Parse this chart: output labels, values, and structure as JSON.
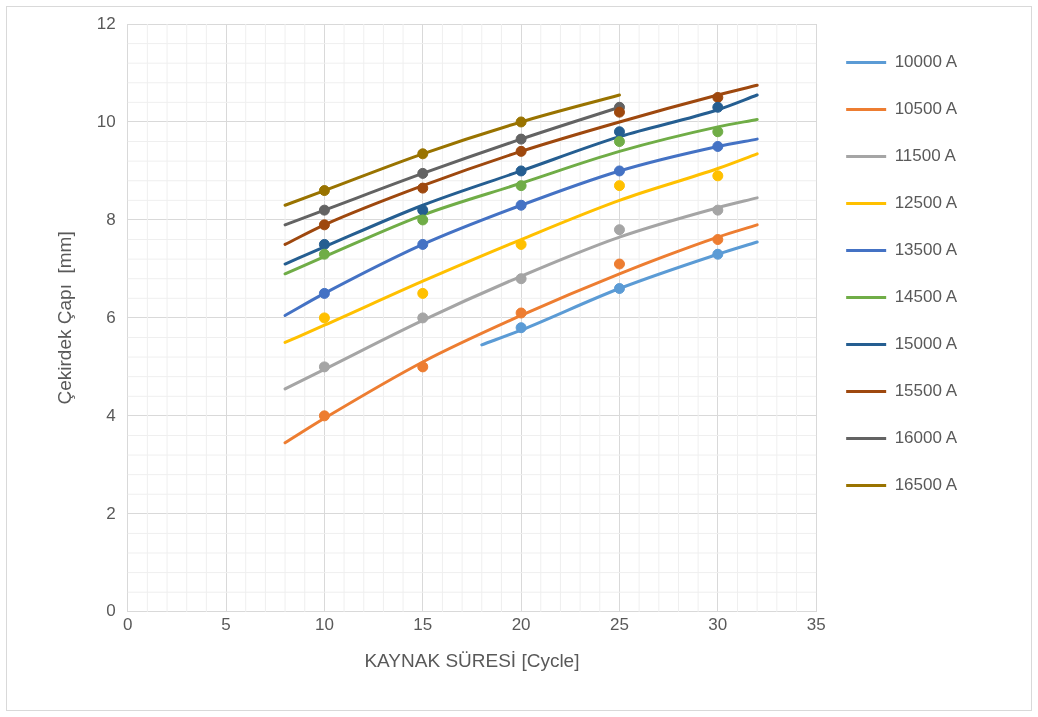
{
  "chart_data": {
    "type": "line",
    "xlabel": "KAYNAK SÜRESİ [Cycle]",
    "ylabel": "Çekirdek Çapı  [mm]",
    "xlim": [
      0,
      35
    ],
    "xticks": [
      0,
      5,
      10,
      15,
      20,
      25,
      30,
      35
    ],
    "ylim": [
      0,
      12
    ],
    "yticks": [
      0,
      2,
      4,
      6,
      8,
      10,
      12
    ],
    "grid": true,
    "legend": "right",
    "marker": "none",
    "line_style": "solid",
    "series": [
      {
        "name": "10000 A",
        "color": "#5b9bd5",
        "x": [
          18,
          20,
          25,
          30,
          32
        ],
        "values": [
          5.45,
          5.75,
          6.6,
          7.3,
          7.55
        ]
      },
      {
        "name": "10500 A",
        "color": "#ed7d31",
        "x": [
          8,
          10,
          15,
          20,
          25,
          30,
          32
        ],
        "values": [
          3.45,
          3.95,
          5.1,
          6.05,
          6.9,
          7.65,
          7.9
        ]
      },
      {
        "name": "11500 A",
        "color": "#a5a5a5",
        "x": [
          8,
          10,
          15,
          20,
          25,
          30,
          32
        ],
        "values": [
          4.55,
          4.95,
          5.95,
          6.85,
          7.65,
          8.25,
          8.45
        ]
      },
      {
        "name": "12500 A",
        "color": "#ffc000",
        "x": [
          8,
          10,
          15,
          20,
          25,
          30,
          32
        ],
        "values": [
          5.5,
          5.85,
          6.75,
          7.6,
          8.4,
          9.05,
          9.35
        ]
      },
      {
        "name": "13500 A",
        "color": "#4472c4",
        "x": [
          8,
          10,
          15,
          20,
          25,
          30,
          32
        ],
        "values": [
          6.05,
          6.5,
          7.5,
          8.3,
          9.0,
          9.5,
          9.65
        ]
      },
      {
        "name": "14500 A",
        "color": "#70ad47",
        "x": [
          8,
          10,
          15,
          20,
          25,
          30,
          32
        ],
        "values": [
          6.9,
          7.25,
          8.1,
          8.75,
          9.4,
          9.9,
          10.05
        ]
      },
      {
        "name": "15000 A",
        "color": "#255e91",
        "x": [
          8,
          10,
          15,
          20,
          25,
          30,
          32
        ],
        "values": [
          7.1,
          7.45,
          8.3,
          9.0,
          9.7,
          10.25,
          10.55
        ]
      },
      {
        "name": "15500 A",
        "color": "#9e480e",
        "x": [
          8,
          10,
          15,
          20,
          25,
          30,
          32
        ],
        "values": [
          7.5,
          7.9,
          8.7,
          9.4,
          10.0,
          10.55,
          10.75
        ]
      },
      {
        "name": "16000 A",
        "color": "#636363",
        "x": [
          8,
          10,
          15,
          20,
          25
        ],
        "values": [
          7.9,
          8.2,
          8.95,
          9.65,
          10.3
        ]
      },
      {
        "name": "16500 A",
        "color": "#997300",
        "x": [
          8,
          10,
          15,
          20,
          25
        ],
        "values": [
          8.3,
          8.6,
          9.35,
          10.0,
          10.55
        ]
      },
      {
        "type": "scatter",
        "marker": "circle",
        "color": "#5b9bd5",
        "x": [
          20,
          25,
          30
        ],
        "values": [
          5.8,
          6.6,
          7.3
        ]
      },
      {
        "type": "scatter",
        "marker": "circle",
        "color": "#ed7d31",
        "x": [
          10,
          15,
          20,
          25,
          30
        ],
        "values": [
          4.0,
          5.0,
          6.1,
          7.1,
          7.6
        ]
      },
      {
        "type": "scatter",
        "marker": "circle",
        "color": "#a5a5a5",
        "x": [
          10,
          15,
          20,
          25,
          30
        ],
        "values": [
          5.0,
          6.0,
          6.8,
          7.8,
          8.2
        ]
      },
      {
        "type": "scatter",
        "marker": "circle",
        "color": "#ffc000",
        "x": [
          10,
          15,
          20,
          25,
          30
        ],
        "values": [
          6.0,
          6.5,
          7.5,
          8.7,
          8.9
        ]
      },
      {
        "type": "scatter",
        "marker": "circle",
        "color": "#4472c4",
        "x": [
          10,
          15,
          20,
          25,
          30
        ],
        "values": [
          6.5,
          7.5,
          8.3,
          9.0,
          9.5
        ]
      },
      {
        "type": "scatter",
        "marker": "circle",
        "color": "#70ad47",
        "x": [
          10,
          15,
          20,
          25,
          30
        ],
        "values": [
          7.3,
          8.0,
          8.7,
          9.6,
          9.8
        ]
      },
      {
        "type": "scatter",
        "marker": "circle",
        "color": "#255e91",
        "x": [
          10,
          15,
          20,
          25,
          30
        ],
        "values": [
          7.5,
          8.2,
          9.0,
          9.8,
          10.3
        ]
      },
      {
        "type": "scatter",
        "marker": "circle",
        "color": "#9e480e",
        "x": [
          10,
          15,
          20,
          25,
          30
        ],
        "values": [
          7.9,
          8.65,
          9.4,
          10.2,
          10.5
        ]
      },
      {
        "type": "scatter",
        "marker": "circle",
        "color": "#636363",
        "x": [
          10,
          15,
          20,
          25
        ],
        "values": [
          8.2,
          8.95,
          9.65,
          10.3
        ]
      },
      {
        "type": "scatter",
        "marker": "circle",
        "color": "#997300",
        "x": [
          10,
          15,
          20
        ],
        "values": [
          8.6,
          9.35,
          10.0
        ]
      }
    ]
  }
}
